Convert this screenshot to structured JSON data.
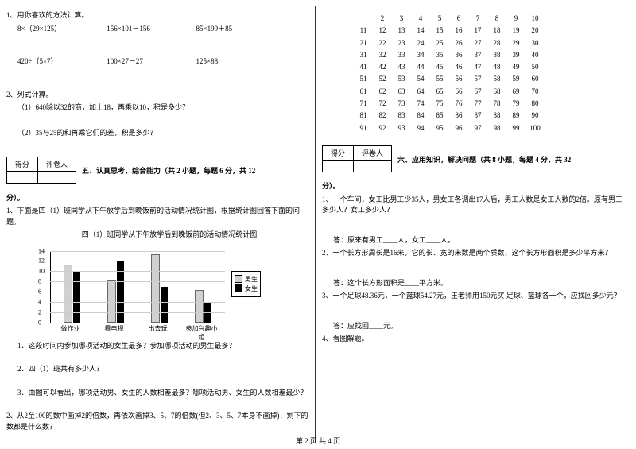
{
  "left": {
    "q1": {
      "title": "1、用你喜欢的方法计算。",
      "r1a": "8×（29×125）",
      "r1b": "156×101－156",
      "r1c": "85×199＋85",
      "r2a": "420÷（5×7）",
      "r2b": "100×27－27",
      "r2c": "125×88"
    },
    "q2": {
      "title": "2、列式计算。",
      "a": "（1）640除以32的商，加上18，再乘以10，积是多少？",
      "b": "（2）35与25的和再乘它们的差，积是多少？"
    },
    "scorebox": {
      "c1": "得分",
      "c2": "评卷人"
    },
    "section5_title": "五、认真思考，综合能力（共 2 小题，每题 6 分，共 12",
    "section5_tail": "分）。",
    "s5q1": {
      "title": "1、下面是四（1）班同学从下午放学后到晚饭前的活动情况统计图，根据统计图回答下面的问题。",
      "subtitle": "四（1）班同学从下午放学后到晚饭前的活动情况统计图",
      "a": "1．这段时间内参加哪项活动的女生最多？参加哪项活动的男生最多？",
      "b": "2．四（1）班共有多少人？",
      "c": "3．由图可以看出，哪项活动男、女生的人数相差最多？哪项活动男、女生的人数相差最少？"
    },
    "s5q2": "2、从2至100的数中画掉2的倍数，再依次画掉3、5、7的倍数(但2、3、5、7本身不画掉)．剩下的数都是什么数？",
    "chart": {
      "ymax": 14,
      "ystep": 2,
      "categories": [
        "做作业",
        "看电视",
        "出去玩",
        "参加兴趣小组"
      ],
      "boys": [
        11,
        8,
        13,
        6
      ],
      "girls": [
        10,
        12,
        7,
        4
      ],
      "colors": {
        "boy": "#d0d0d0",
        "girl": "#000000",
        "grid": "#cccccc"
      },
      "legend": {
        "boy": "男生",
        "girl": "女生"
      }
    }
  },
  "right": {
    "grid": {
      "start": 2,
      "end": 100,
      "first_row_start": 2
    },
    "scorebox": {
      "c1": "得分",
      "c2": "评卷人"
    },
    "section6_title": "六、应用知识，解决问题（共 8 小题，每题 4 分，共 32",
    "section6_tail": "分）。",
    "q1": "1、一个车间，女工比男工少35人，男女工各调出17人后，男工人数是女工人数的2倍。原有男工多少人？女工多少人？",
    "a1": "答：原来有男工____人，女工____人。",
    "q2": "2、一个长方形周长是16米，它的长、宽的米数是两个质数，这个长方形面积是多少平方米？",
    "a2": "答：这个长方形面积是____平方米。",
    "q3": "3、一个足球48.36元，一个篮球54.27元，王老师用150元买  足球、篮球各一个，应找回多少元？",
    "a3": "答：应找回____元。",
    "q4": "4、看图解题。"
  },
  "footer": "第 2 页 共 4 页"
}
